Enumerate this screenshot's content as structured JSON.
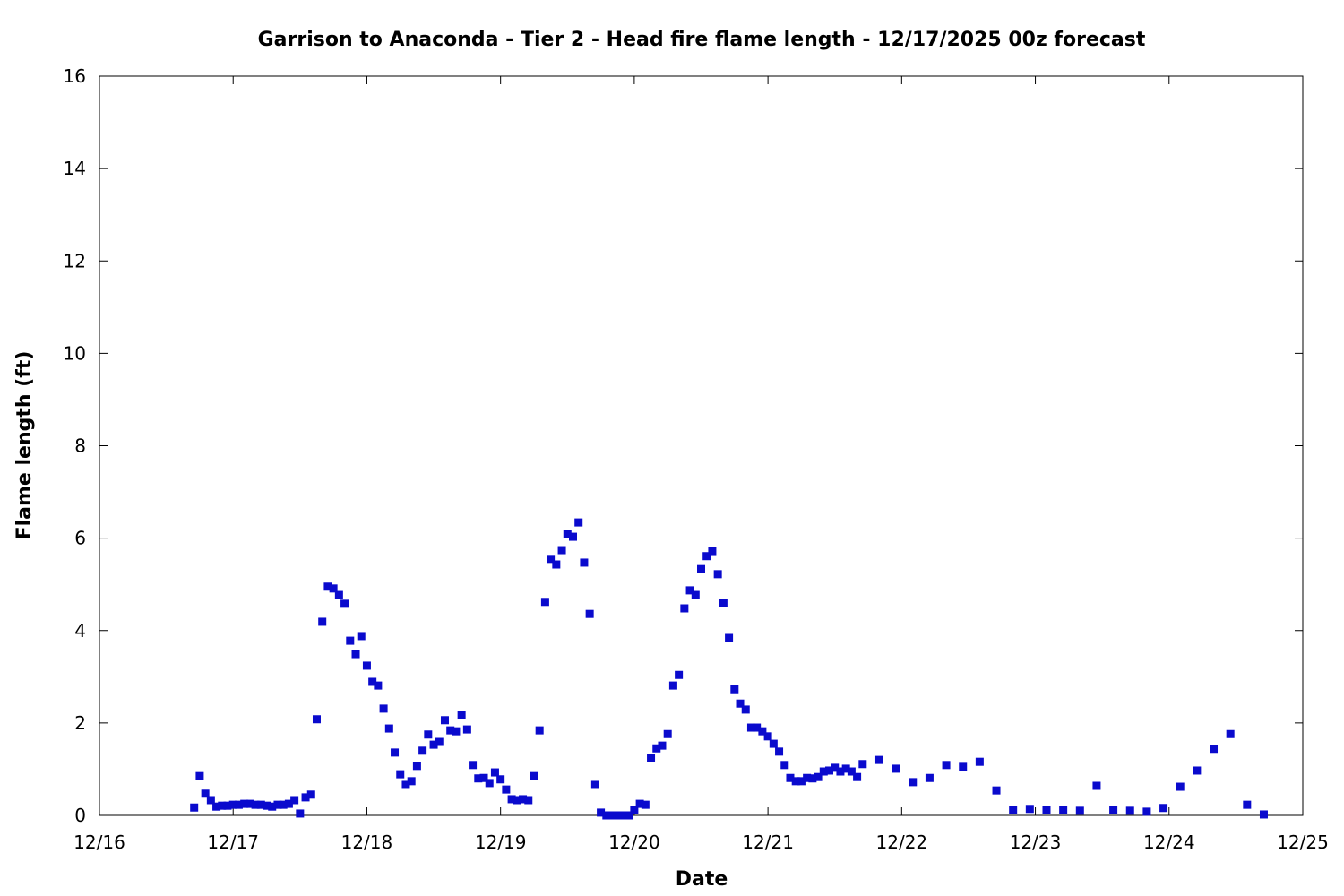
{
  "chart_data": {
    "type": "scatter",
    "title": "Garrison to Anaconda - Tier 2 - Head fire flame length - 12/17/2025 00z forecast",
    "xlabel": "Date",
    "ylabel": "Flame length (ft)",
    "xlim": [
      "12/16 00:00",
      "12/25 00:00"
    ],
    "ylim": [
      0,
      16
    ],
    "x_ticks": [
      "12/16",
      "12/17",
      "12/18",
      "12/19",
      "12/20",
      "12/21",
      "12/22",
      "12/23",
      "12/24",
      "12/25"
    ],
    "y_ticks": [
      0,
      2,
      4,
      6,
      8,
      10,
      12,
      14,
      16
    ],
    "grid": false,
    "marker_color": "#0a0acd",
    "series": [
      {
        "marker": "square",
        "points": [
          [
            "12/16 17:00",
            0.17
          ],
          [
            "12/16 18:00",
            0.85
          ],
          [
            "12/16 19:00",
            0.47
          ],
          [
            "12/16 20:00",
            0.33
          ],
          [
            "12/16 21:00",
            0.19
          ],
          [
            "12/16 22:00",
            0.21
          ],
          [
            "12/16 23:00",
            0.21
          ],
          [
            "12/17 00:00",
            0.23
          ],
          [
            "12/17 01:00",
            0.23
          ],
          [
            "12/17 02:00",
            0.25
          ],
          [
            "12/17 03:00",
            0.25
          ],
          [
            "12/17 04:00",
            0.23
          ],
          [
            "12/17 05:00",
            0.23
          ],
          [
            "12/17 06:00",
            0.21
          ],
          [
            "12/17 07:00",
            0.19
          ],
          [
            "12/17 08:00",
            0.23
          ],
          [
            "12/17 09:00",
            0.23
          ],
          [
            "12/17 10:00",
            0.25
          ],
          [
            "12/17 11:00",
            0.33
          ],
          [
            "12/17 12:00",
            0.04
          ],
          [
            "12/17 13:00",
            0.39
          ],
          [
            "12/17 14:00",
            0.45
          ],
          [
            "12/17 15:00",
            2.08
          ],
          [
            "12/17 16:00",
            4.19
          ],
          [
            "12/17 17:00",
            4.95
          ],
          [
            "12/17 18:00",
            4.91
          ],
          [
            "12/17 19:00",
            4.77
          ],
          [
            "12/17 20:00",
            4.58
          ],
          [
            "12/17 21:00",
            3.78
          ],
          [
            "12/17 22:00",
            3.49
          ],
          [
            "12/17 23:00",
            3.88
          ],
          [
            "12/18 00:00",
            3.24
          ],
          [
            "12/18 01:00",
            2.89
          ],
          [
            "12/18 02:00",
            2.81
          ],
          [
            "12/18 03:00",
            2.31
          ],
          [
            "12/18 04:00",
            1.88
          ],
          [
            "12/18 05:00",
            1.36
          ],
          [
            "12/18 06:00",
            0.89
          ],
          [
            "12/18 07:00",
            0.66
          ],
          [
            "12/18 08:00",
            0.74
          ],
          [
            "12/18 09:00",
            1.07
          ],
          [
            "12/18 10:00",
            1.4
          ],
          [
            "12/18 11:00",
            1.75
          ],
          [
            "12/18 12:00",
            1.53
          ],
          [
            "12/18 13:00",
            1.59
          ],
          [
            "12/18 14:00",
            2.06
          ],
          [
            "12/18 15:00",
            1.84
          ],
          [
            "12/18 16:00",
            1.82
          ],
          [
            "12/18 17:00",
            2.17
          ],
          [
            "12/18 18:00",
            1.86
          ],
          [
            "12/18 19:00",
            1.09
          ],
          [
            "12/18 20:00",
            0.8
          ],
          [
            "12/18 21:00",
            0.81
          ],
          [
            "12/18 22:00",
            0.7
          ],
          [
            "12/18 23:00",
            0.93
          ],
          [
            "12/19 00:00",
            0.78
          ],
          [
            "12/19 01:00",
            0.56
          ],
          [
            "12/19 02:00",
            0.35
          ],
          [
            "12/19 03:00",
            0.33
          ],
          [
            "12/19 04:00",
            0.35
          ],
          [
            "12/19 05:00",
            0.33
          ],
          [
            "12/19 06:00",
            0.85
          ],
          [
            "12/19 07:00",
            1.84
          ],
          [
            "12/19 08:00",
            4.62
          ],
          [
            "12/19 09:00",
            5.55
          ],
          [
            "12/19 10:00",
            5.43
          ],
          [
            "12/19 11:00",
            5.74
          ],
          [
            "12/19 12:00",
            6.09
          ],
          [
            "12/19 13:00",
            6.03
          ],
          [
            "12/19 14:00",
            6.34
          ],
          [
            "12/19 15:00",
            5.47
          ],
          [
            "12/19 16:00",
            4.36
          ],
          [
            "12/19 17:00",
            0.66
          ],
          [
            "12/19 18:00",
            0.06
          ],
          [
            "12/19 19:00",
            0
          ],
          [
            "12/19 20:00",
            0
          ],
          [
            "12/19 21:00",
            0
          ],
          [
            "12/19 22:00",
            0
          ],
          [
            "12/19 23:00",
            0
          ],
          [
            "12/20 00:00",
            0.12
          ],
          [
            "12/20 01:00",
            0.25
          ],
          [
            "12/20 02:00",
            0.23
          ],
          [
            "12/20 03:00",
            1.24
          ],
          [
            "12/20 04:00",
            1.45
          ],
          [
            "12/20 05:00",
            1.51
          ],
          [
            "12/20 06:00",
            1.76
          ],
          [
            "12/20 07:00",
            2.81
          ],
          [
            "12/20 08:00",
            3.04
          ],
          [
            "12/20 09:00",
            4.48
          ],
          [
            "12/20 10:00",
            4.87
          ],
          [
            "12/20 11:00",
            4.77
          ],
          [
            "12/20 12:00",
            5.33
          ],
          [
            "12/20 13:00",
            5.61
          ],
          [
            "12/20 14:00",
            5.72
          ],
          [
            "12/20 15:00",
            5.22
          ],
          [
            "12/20 16:00",
            4.6
          ],
          [
            "12/20 17:00",
            3.84
          ],
          [
            "12/20 18:00",
            2.73
          ],
          [
            "12/20 19:00",
            2.42
          ],
          [
            "12/20 20:00",
            2.29
          ],
          [
            "12/20 21:00",
            1.9
          ],
          [
            "12/20 22:00",
            1.9
          ],
          [
            "12/20 23:00",
            1.82
          ],
          [
            "12/21 00:00",
            1.71
          ],
          [
            "12/21 01:00",
            1.55
          ],
          [
            "12/21 02:00",
            1.38
          ],
          [
            "12/21 03:00",
            1.09
          ],
          [
            "12/21 04:00",
            0.81
          ],
          [
            "12/21 05:00",
            0.74
          ],
          [
            "12/21 06:00",
            0.74
          ],
          [
            "12/21 07:00",
            0.81
          ],
          [
            "12/21 08:00",
            0.8
          ],
          [
            "12/21 09:00",
            0.83
          ],
          [
            "12/21 10:00",
            0.95
          ],
          [
            "12/21 11:00",
            0.97
          ],
          [
            "12/21 12:00",
            1.03
          ],
          [
            "12/21 13:00",
            0.95
          ],
          [
            "12/21 14:00",
            1.01
          ],
          [
            "12/21 15:00",
            0.95
          ],
          [
            "12/21 16:00",
            0.83
          ],
          [
            "12/21 17:00",
            1.11
          ],
          [
            "12/21 20:00",
            1.2
          ],
          [
            "12/21 23:00",
            1.01
          ],
          [
            "12/22 02:00",
            0.72
          ],
          [
            "12/22 05:00",
            0.81
          ],
          [
            "12/22 08:00",
            1.09
          ],
          [
            "12/22 11:00",
            1.05
          ],
          [
            "12/22 14:00",
            1.16
          ],
          [
            "12/22 17:00",
            0.54
          ],
          [
            "12/22 20:00",
            0.12
          ],
          [
            "12/22 23:00",
            0.14
          ],
          [
            "12/23 02:00",
            0.12
          ],
          [
            "12/23 05:00",
            0.12
          ],
          [
            "12/23 08:00",
            0.1
          ],
          [
            "12/23 11:00",
            0.64
          ],
          [
            "12/23 14:00",
            0.12
          ],
          [
            "12/23 17:00",
            0.1
          ],
          [
            "12/23 20:00",
            0.08
          ],
          [
            "12/23 23:00",
            0.16
          ],
          [
            "12/24 02:00",
            0.62
          ],
          [
            "12/24 05:00",
            0.97
          ],
          [
            "12/24 08:00",
            1.44
          ],
          [
            "12/24 11:00",
            1.76
          ],
          [
            "12/24 14:00",
            0.23
          ],
          [
            "12/24 17:00",
            0.02
          ]
        ]
      }
    ]
  }
}
